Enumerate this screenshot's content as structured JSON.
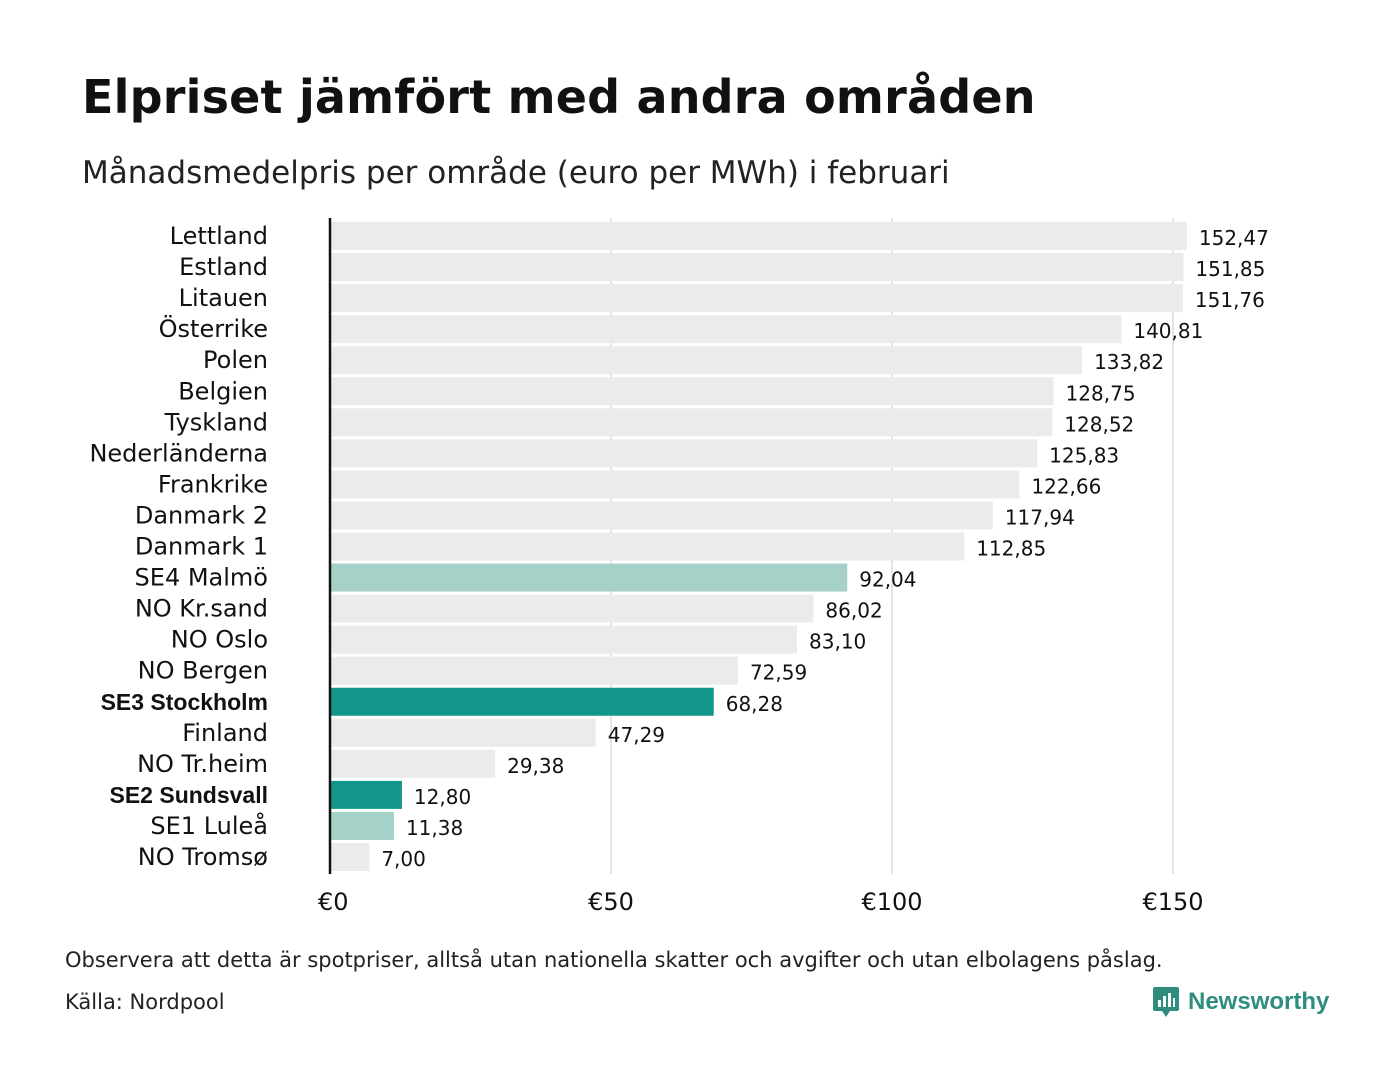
{
  "title": "Elpriset jämfört med andra områden",
  "subtitle": "Månadsmedelpris per område (euro per MWh) i februari",
  "note": "Observera att detta är spotpriser, alltså utan nationella skatter och avgifter och utan elbolagens påslag.",
  "source": "Källa: Nordpool",
  "brand": {
    "name": "Newsworthy",
    "icon": "bar-chart-speech-icon",
    "color": "#2f8d7f"
  },
  "colors": {
    "default_bar": "#ebebeb",
    "highlight_bar": "#13968a",
    "light_highlight_bar": "#a6d1c9",
    "axis": "#111111",
    "grid": "#c8c8d0"
  },
  "chart_data": {
    "type": "bar",
    "orientation": "horizontal",
    "categories": [
      "Lettland",
      "Estland",
      "Litauen",
      "Österrike",
      "Polen",
      "Belgien",
      "Tyskland",
      "Nederländerna",
      "Frankrike",
      "Danmark 2",
      "Danmark 1",
      "SE4 Malmö",
      "NO Kr.sand",
      "NO Oslo",
      "NO Bergen",
      "SE3 Stockholm",
      "Finland",
      "NO Tr.heim",
      "SE2 Sundsvall",
      "SE1 Luleå",
      "NO Tromsø"
    ],
    "values": [
      152.47,
      151.85,
      151.76,
      140.81,
      133.82,
      128.75,
      128.52,
      125.83,
      122.66,
      117.94,
      112.85,
      92.04,
      86.02,
      83.1,
      72.59,
      68.28,
      47.29,
      29.38,
      12.8,
      11.38,
      7.0
    ],
    "value_labels": [
      "152,47",
      "151,85",
      "151,76",
      "140,81",
      "133,82",
      "128,75",
      "128,52",
      "125,83",
      "122,66",
      "117,94",
      "112,85",
      "92,04",
      "86,02",
      "83,10",
      "72,59",
      "68,28",
      "47,29",
      "29,38",
      "12,80",
      "11,38",
      "7,00"
    ],
    "bar_styles": [
      "default",
      "default",
      "default",
      "default",
      "default",
      "default",
      "default",
      "default",
      "default",
      "default",
      "default",
      "light",
      "default",
      "default",
      "default",
      "highlight",
      "default",
      "default",
      "highlight",
      "light",
      "default"
    ],
    "bold_labels": [
      "SE3 Stockholm",
      "SE2 Sundsvall"
    ],
    "xlim": [
      0,
      160
    ],
    "x_ticks": [
      0,
      50,
      100,
      150
    ],
    "x_tick_labels": [
      "€0",
      "€50",
      "€100",
      "€150"
    ],
    "grid": true,
    "xlabel": "",
    "ylabel": ""
  }
}
